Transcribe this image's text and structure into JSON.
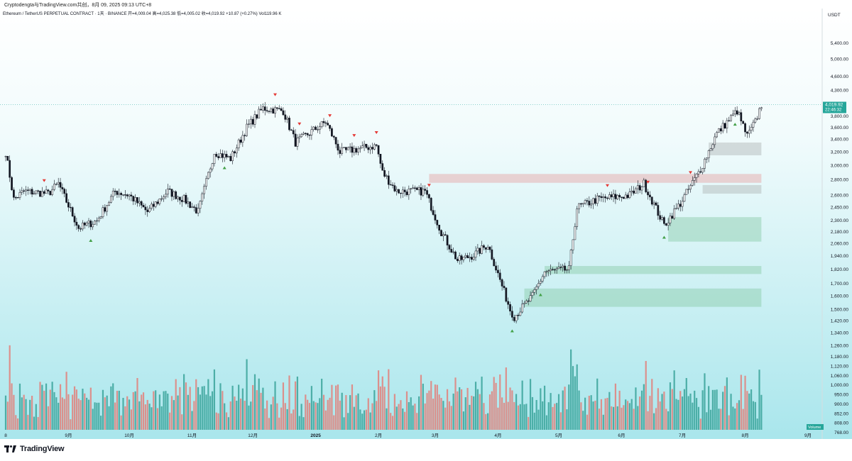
{
  "screenshot_caption": "Cryptodengta与TradingView.com共创，8月 09, 2025 09:13 UTC+8",
  "brand": "TradingView",
  "chart_data": {
    "type": "candlestick",
    "title": "Ethereum / TetherUS PERPETUAL CONTRACT · 1天 · BINANCE",
    "ohlc_text": "开=4,009.04  高=4,025.38  低=4,005.02  收=4,019.92  +10.87 (+0.27%)  Vol119.96 K",
    "currency": "USDT",
    "price_scale": "log",
    "ylim": [
      1250,
      5800
    ],
    "y_ticks": [
      "5,400.00",
      "5,000.00",
      "4,600.00",
      "4,300.00",
      "3,800.00",
      "3,600.00",
      "3,400.00",
      "3,200.00",
      "3,000.00",
      "2,800.00",
      "2,600.00",
      "2,450.00",
      "2,300.00",
      "2,180.00",
      "2,060.00",
      "1,940.00",
      "1,820.00",
      "1,700.00",
      "1,600.00",
      "1,500.00",
      "1,420.00",
      "1,340.00",
      "1,260.00"
    ],
    "volume_ticks": [
      "1,180.00",
      "1,120.00",
      "1,060.00",
      "1,000.00",
      "950.00",
      "900.00",
      "852.00",
      "808.00",
      "768.00"
    ],
    "volume_label": "Volume",
    "x_ticks": [
      "8",
      "9月",
      "10月",
      "11月",
      "12月",
      "2025",
      "2月",
      "3月",
      "4月",
      "5月",
      "6月",
      "7月",
      "8月",
      "9月"
    ],
    "last_price": "4,019.92",
    "countdown": "22:46:32",
    "close_waypoints": [
      [
        "2024-08-01",
        3200
      ],
      [
        "2024-08-05",
        2550
      ],
      [
        "2024-08-10",
        2650
      ],
      [
        "2024-08-22",
        2620
      ],
      [
        "2024-08-27",
        2750
      ],
      [
        "2024-09-06",
        2220
      ],
      [
        "2024-09-15",
        2300
      ],
      [
        "2024-09-24",
        2650
      ],
      [
        "2024-10-01",
        2600
      ],
      [
        "2024-10-10",
        2400
      ],
      [
        "2024-10-20",
        2650
      ],
      [
        "2024-10-28",
        2550
      ],
      [
        "2024-11-04",
        2400
      ],
      [
        "2024-11-12",
        3200
      ],
      [
        "2024-11-20",
        3100
      ],
      [
        "2024-11-28",
        3600
      ],
      [
        "2024-12-06",
        3950
      ],
      [
        "2024-12-16",
        3900
      ],
      [
        "2024-12-22",
        3350
      ],
      [
        "2025-01-06",
        3700
      ],
      [
        "2025-01-13",
        3200
      ],
      [
        "2025-01-31",
        3300
      ],
      [
        "2025-02-03",
        2900
      ],
      [
        "2025-02-10",
        2650
      ],
      [
        "2025-02-24",
        2650
      ],
      [
        "2025-03-04",
        2180
      ],
      [
        "2025-03-12",
        1900
      ],
      [
        "2025-03-20",
        1950
      ],
      [
        "2025-03-27",
        2050
      ],
      [
        "2025-04-07",
        1500
      ],
      [
        "2025-04-09",
        1450
      ],
      [
        "2025-04-18",
        1600
      ],
      [
        "2025-04-24",
        1800
      ],
      [
        "2025-05-06",
        1820
      ],
      [
        "2025-05-10",
        2450
      ],
      [
        "2025-05-20",
        2550
      ],
      [
        "2025-06-05",
        2600
      ],
      [
        "2025-06-12",
        2750
      ],
      [
        "2025-06-22",
        2250
      ],
      [
        "2025-06-30",
        2500
      ],
      [
        "2025-07-10",
        2950
      ],
      [
        "2025-07-18",
        3500
      ],
      [
        "2025-07-28",
        3900
      ],
      [
        "2025-08-02",
        3450
      ],
      [
        "2025-08-06",
        3700
      ],
      [
        "2025-08-09",
        4019
      ]
    ],
    "zones": [
      {
        "from": "2025-02-26",
        "to": "2025-08-09",
        "low": 2760,
        "high": 2880,
        "color": "#e6a1a1"
      },
      {
        "from": "2025-06-24",
        "to": "2025-08-09",
        "low": 2080,
        "high": 2340,
        "color": "#88c9a6"
      },
      {
        "from": "2025-04-24",
        "to": "2025-08-09",
        "low": 1780,
        "high": 1850,
        "color": "#88c9a6"
      },
      {
        "from": "2025-04-14",
        "to": "2025-08-09",
        "low": 1520,
        "high": 1660,
        "color": "#88c9a6"
      },
      {
        "from": "2025-07-14",
        "to": "2025-08-09",
        "low": 3150,
        "high": 3350,
        "color": "#aeb4b4"
      },
      {
        "from": "2025-07-11",
        "to": "2025-08-09",
        "low": 2620,
        "high": 2730,
        "color": "#aeb4b4"
      }
    ],
    "colors": {
      "up": "#131722",
      "down": "#131722",
      "vol_up": "#3aa39a",
      "vol_down": "#e2807a",
      "bg_top": "#ffffff",
      "bg_bottom": "#a9e6ec",
      "last_price": "#26a69a",
      "down_arrow": "#e53935",
      "up_arrow": "#43a047"
    }
  }
}
